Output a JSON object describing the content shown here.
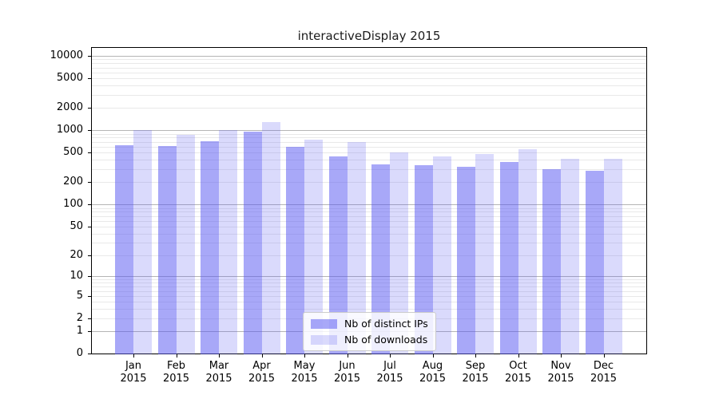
{
  "chart_data": {
    "type": "bar",
    "title": "interactiveDisplay 2015",
    "categories": [
      "Jan",
      "Feb",
      "Mar",
      "Apr",
      "May",
      "Jun",
      "Jul",
      "Aug",
      "Sep",
      "Oct",
      "Nov",
      "Dec"
    ],
    "category_year": "2015",
    "series": [
      {
        "name": "Nb of distinct IPs",
        "color": "rgba(88,88,242,0.52)",
        "values": [
          630,
          615,
          715,
          970,
          595,
          450,
          350,
          340,
          325,
          380,
          300,
          285
        ]
      },
      {
        "name": "Nb of downloads",
        "color": "rgba(88,88,242,0.22)",
        "values": [
          1000,
          865,
          1000,
          1280,
          745,
          690,
          500,
          445,
          485,
          555,
          420,
          410
        ]
      }
    ],
    "yscale": "log1p",
    "ylim": [
      0,
      13000
    ],
    "yticks": [
      10000,
      5000,
      2000,
      1000,
      500,
      200,
      100,
      50,
      20,
      10,
      5,
      2,
      1,
      0
    ],
    "grid": {
      "major_ticks": [
        1,
        10,
        100,
        1000,
        10000
      ],
      "major_color": "#b5b5b5",
      "minor_color": "#e9e9e9"
    },
    "legend": {
      "position": "lower center"
    }
  },
  "colors": {
    "background": "#ffffff",
    "spine": "#000000",
    "text": "#000000"
  }
}
